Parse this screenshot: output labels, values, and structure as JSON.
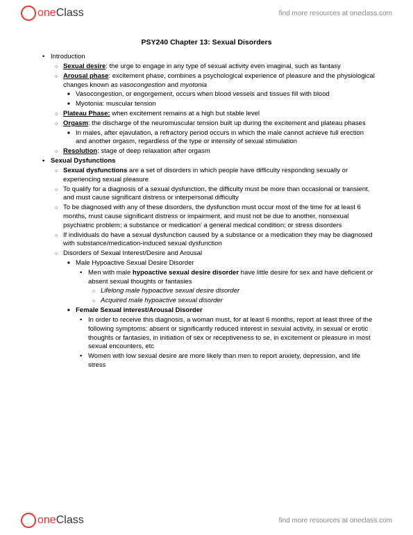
{
  "header": {
    "logo_one": "one",
    "logo_class": "Class",
    "link": "find more resources at oneclass.com"
  },
  "doc": {
    "title": "PSY240 Chapter 13: Sexual Disorders",
    "intro_label": "Introduction",
    "sd_term": "Sexual desire",
    "sd_def": ": the urge to engage in any type of sexual activity even imaginal, such as fantasy",
    "ar_term": "Arousal phase",
    "ar_def": ": excitement phase, combines a psychological experience of pleasure and the physiological changes known as ",
    "ar_i1": "vasocongestion",
    "ar_and": " and ",
    "ar_i2": "myotonia",
    "vaso": "Vasocongestion, or engorgement, occurs when blood vessels and tissues fill with blood",
    "myo": "Myotonia: muscular tension",
    "pp_term": "Plateau Phase:",
    "pp_def": " when excitement remains at a high but stable level",
    "org_term": "Orgasm",
    "org_def": ": the discharge of the neuromuscular tension built up during the excitement and plateau phases",
    "org_sub": "In males, after ejavulation, a refractory period occurs in which the male cannot achieve full erection and another orgasm, regardless of the type or intensity of sexual stimulation",
    "res_term": "Resolution",
    "res_def": ": stage of deep relaxation after orgasm",
    "dysf_header": "Sexual Dysfunctions",
    "dysf_term": "Sexual dysfunctions",
    "dysf_def": " are a set of disorders in which people have difficulty responding sexually or experiencing sexual pleasure",
    "qual": "To qualify for a diagnosis of a sexual dysfunction, the difficulty must be more than occasional or transient, and must cause significant distress or interpersonal difficulty",
    "diag": "To be diagnosed with any of these disorders, the dysfunction must occur most of the time for at least 6 months, must cause significant distress or impairment, and must not be due to another, nonsexual psychiatric problem; a substance or medication' a general medical condition; or stress disorders",
    "subst": "If individuals do have a sexual dysfunction caused by a substance or a medication they may be diagnosed with substance/medication-induced sexual dysfunction",
    "disorders_header": "Disorders of Sexual Interest/Desire and Arousal",
    "male_hypo": "Male Hypoactive Sexual Desire Disorder",
    "male_hypo_pre": "Men with male ",
    "male_hypo_term": "hypoactive sexual desire disorder",
    "male_hypo_post": " have little desire for sex and have deficient or absent sexual thoughts or fantasies",
    "lifelong": "Lifelong male hypoactive sexual desire disorder",
    "acquired": "Acquired male hypoactive sexual disorder",
    "female_header": "Female Sexual interest/Arousal Disorder",
    "female_diag": "In order to receive this diagnosis, a woman must, for at least 6 months, report at least three of the following symptoms: absent or significantly reduced interest in sexuial activity, in sexual or erotic thoughts or fantasies, in initiation of sex or receptiveness to se, in excitement or pleasure in most sexual encounters, etc",
    "female_low": "Women with low sexual desire are more likely than men to report anxiety, depression, and life stress"
  },
  "footer": {
    "logo_one": "one",
    "logo_class": "Class",
    "link": "find more resources at oneclass.com"
  }
}
